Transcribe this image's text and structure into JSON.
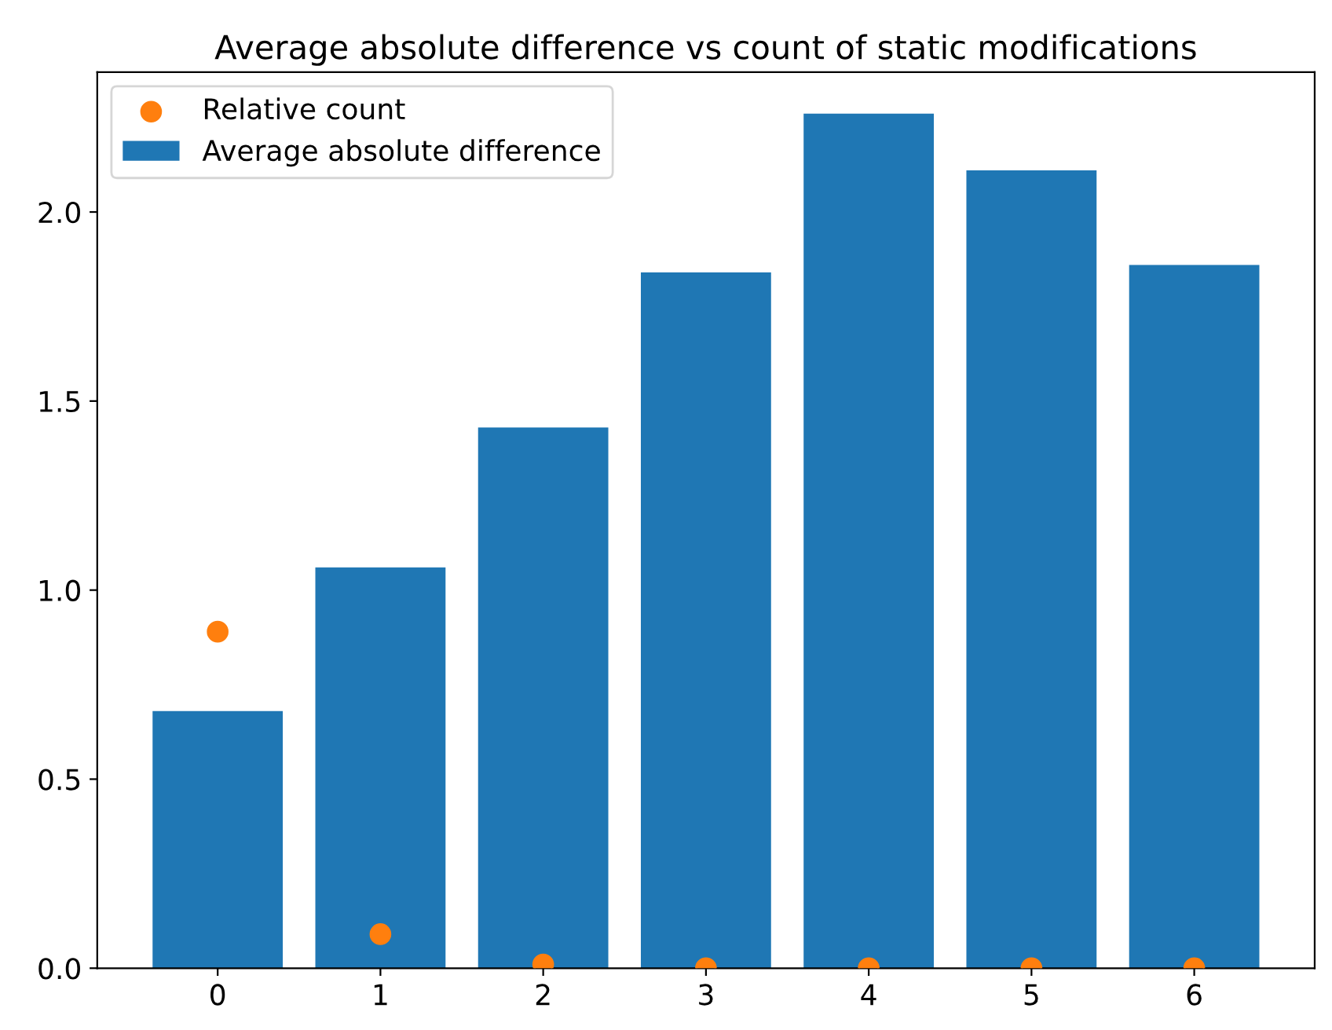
{
  "chart_data": {
    "type": "bar",
    "title": "Average absolute difference vs count of static modifications",
    "x": [
      0,
      1,
      2,
      3,
      4,
      5,
      6
    ],
    "series": [
      {
        "name": "Relative count",
        "type": "scatter",
        "color": "#ff7f0e",
        "values": [
          0.89,
          0.09,
          0.01,
          0.0,
          0.0,
          0.0,
          0.0
        ]
      },
      {
        "name": "Average absolute difference",
        "color": "#1f77b4",
        "values": [
          0.68,
          1.06,
          1.43,
          1.84,
          2.26,
          2.11,
          1.86
        ]
      }
    ],
    "xlim": [
      -0.74,
      6.74
    ],
    "xticks": [
      0,
      1,
      2,
      3,
      4,
      5,
      6
    ],
    "ylim": [
      0,
      2.37
    ],
    "yticks": [
      {
        "value": 0,
        "label": "0.0"
      },
      0.5,
      {
        "value": 1,
        "label": "1.0"
      },
      1.5,
      {
        "value": 2,
        "label": "2.0"
      }
    ],
    "legend": "top left",
    "marker": "circle",
    "grid": false
  }
}
